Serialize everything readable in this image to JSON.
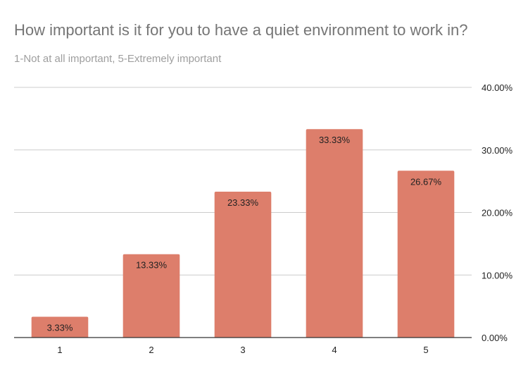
{
  "chart_data": {
    "type": "bar",
    "title": "How important is it for you to have a quiet environment to work in?",
    "subtitle": "1-Not at all important, 5-Extremely important",
    "categories": [
      "1",
      "2",
      "3",
      "4",
      "5"
    ],
    "values": [
      3.33,
      13.33,
      23.33,
      33.33,
      26.67
    ],
    "data_labels": [
      "3.33%",
      "13.33%",
      "23.33%",
      "33.33%",
      "26.67%"
    ],
    "ylim": [
      0,
      40
    ],
    "y_ticks": [
      0,
      10,
      20,
      30,
      40
    ],
    "y_tick_labels": [
      "0.00%",
      "10.00%",
      "20.00%",
      "30.00%",
      "40.00%"
    ],
    "y_axis_side": "right",
    "grid": true,
    "bar_color": "#dd7e6b",
    "xlabel": "",
    "ylabel": ""
  }
}
